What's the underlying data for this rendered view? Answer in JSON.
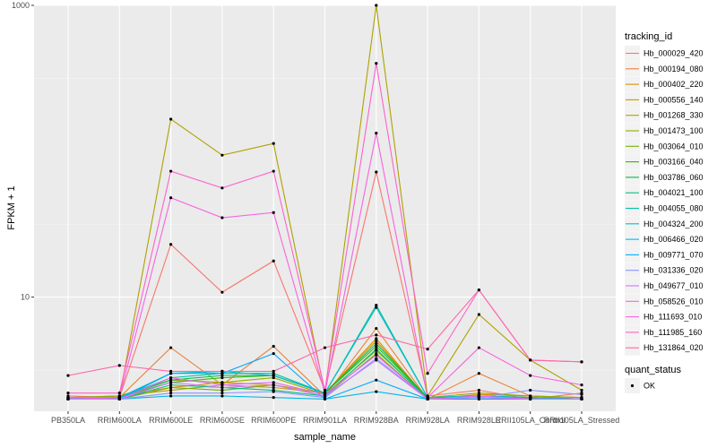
{
  "chart_data": {
    "type": "line",
    "xlabel": "sample_name",
    "ylabel": "FPKM + 1",
    "y_scale": "log10",
    "ylim": [
      1.65,
      1000
    ],
    "y_ticks": [
      {
        "value": 10,
        "label": "10"
      },
      {
        "value": 1000,
        "label": "1000"
      }
    ],
    "grid": true,
    "background": "#ebebeb",
    "categories": [
      "PB350LA",
      "RRIM600LA",
      "RRIM600LE",
      "RRIM600SE",
      "RRIM600PE",
      "RRIM901LA",
      "RRIM928BA",
      "RRIM928LA",
      "RRIM928LE",
      "RRII105LA_Control",
      "RRII105LA_Stressed"
    ],
    "legend": {
      "title": "tracking_id",
      "position": "right"
    },
    "legend2": {
      "title": "quant_status",
      "items": [
        {
          "label": "OK"
        }
      ]
    },
    "series": [
      {
        "name": "Hb_000029_420",
        "color": "#F8766D",
        "values": [
          2.1,
          2.05,
          23,
          10.8,
          17.7,
          2.3,
          72,
          2.1,
          2.3,
          2.0,
          2.2
        ]
      },
      {
        "name": "Hb_000194_080",
        "color": "#EC8239",
        "values": [
          2.0,
          2.05,
          4.5,
          2.5,
          4.6,
          2.1,
          6.1,
          2.0,
          3.0,
          2.1,
          2.0
        ]
      },
      {
        "name": "Hb_000402_220",
        "color": "#DB8E00",
        "values": [
          2.05,
          2.1,
          2.4,
          2.6,
          2.5,
          2.2,
          5.2,
          2.0,
          2.15,
          2.1,
          2.05
        ]
      },
      {
        "name": "Hb_000556_140",
        "color": "#C79800",
        "values": [
          2.0,
          2.1,
          2.3,
          2.5,
          2.4,
          2.2,
          5.0,
          2.0,
          2.1,
          2.05,
          2.0
        ]
      },
      {
        "name": "Hb_001268_330",
        "color": "#AFA100",
        "values": [
          2.0,
          2.05,
          166,
          94,
          113,
          2.2,
          1000,
          2.1,
          7.6,
          3.7,
          2.3
        ]
      },
      {
        "name": "Hb_001473_100",
        "color": "#96A900",
        "values": [
          2.05,
          2.1,
          2.7,
          2.6,
          2.8,
          2.15,
          4.3,
          2.05,
          2.2,
          2.1,
          2.05
        ]
      },
      {
        "name": "Hb_003064_010",
        "color": "#72B000",
        "values": [
          2.0,
          2.0,
          2.4,
          2.3,
          2.5,
          2.1,
          4.1,
          2.0,
          2.05,
          2.0,
          2.0
        ]
      },
      {
        "name": "Hb_003166_040",
        "color": "#39B600",
        "values": [
          2.0,
          2.05,
          2.6,
          2.8,
          2.9,
          2.2,
          4.6,
          2.05,
          2.1,
          2.05,
          2.0
        ]
      },
      {
        "name": "Hb_003786_060",
        "color": "#00BB4E",
        "values": [
          2.0,
          2.05,
          2.7,
          2.9,
          2.9,
          2.2,
          4.8,
          2.05,
          2.1,
          2.05,
          2.0
        ]
      },
      {
        "name": "Hb_004021_100",
        "color": "#00BF7D",
        "values": [
          2.0,
          2.0,
          2.5,
          2.4,
          2.3,
          2.1,
          4.4,
          2.0,
          2.1,
          2.0,
          2.0
        ]
      },
      {
        "name": "Hb_004055_080",
        "color": "#00C1A3",
        "values": [
          2.0,
          2.05,
          2.8,
          3.0,
          3.0,
          2.2,
          8.8,
          2.05,
          2.1,
          2.05,
          2.0
        ]
      },
      {
        "name": "Hb_004324_200",
        "color": "#00BECA",
        "values": [
          2.0,
          2.05,
          3.0,
          3.1,
          2.9,
          2.2,
          8.5,
          2.05,
          2.1,
          2.05,
          2.0
        ]
      },
      {
        "name": "Hb_006466_020",
        "color": "#00B8E5",
        "values": [
          2.0,
          2.0,
          2.1,
          2.1,
          2.05,
          2.0,
          2.25,
          2.0,
          2.0,
          2.0,
          2.0
        ]
      },
      {
        "name": "Hb_009771_070",
        "color": "#00ACFC",
        "values": [
          2.0,
          2.0,
          3.0,
          3.0,
          4.1,
          2.0,
          2.7,
          2.0,
          2.0,
          2.0,
          2.0
        ]
      },
      {
        "name": "Hb_031336_020",
        "color": "#8B93FF",
        "values": [
          2.0,
          2.0,
          2.2,
          2.2,
          2.25,
          2.05,
          3.8,
          2.0,
          2.05,
          2.3,
          2.15
        ]
      },
      {
        "name": "Hb_049677_010",
        "color": "#C77CFF",
        "values": [
          2.0,
          2.0,
          2.6,
          2.4,
          2.5,
          2.1,
          3.7,
          2.0,
          2.05,
          2.0,
          2.0
        ]
      },
      {
        "name": "Hb_058526_010",
        "color": "#E56BF0",
        "values": [
          2.05,
          2.0,
          2.8,
          2.5,
          2.6,
          2.15,
          4.0,
          2.0,
          2.1,
          2.0,
          2.0
        ]
      },
      {
        "name": "Hb_111693_010",
        "color": "#F863DF",
        "values": [
          2.05,
          2.05,
          48,
          35,
          38,
          2.2,
          133,
          2.05,
          4.5,
          2.9,
          2.5
        ]
      },
      {
        "name": "Hb_111985_160",
        "color": "#FE61CB",
        "values": [
          2.2,
          2.2,
          73,
          56,
          73,
          2.3,
          400,
          3.0,
          11.2,
          3.7,
          3.6
        ]
      },
      {
        "name": "Hb_131864_020",
        "color": "#FF66A8",
        "values": [
          2.9,
          3.4,
          3.1,
          3.1,
          3.1,
          4.5,
          5.5,
          4.4,
          11.2,
          3.7,
          3.6
        ]
      }
    ]
  }
}
